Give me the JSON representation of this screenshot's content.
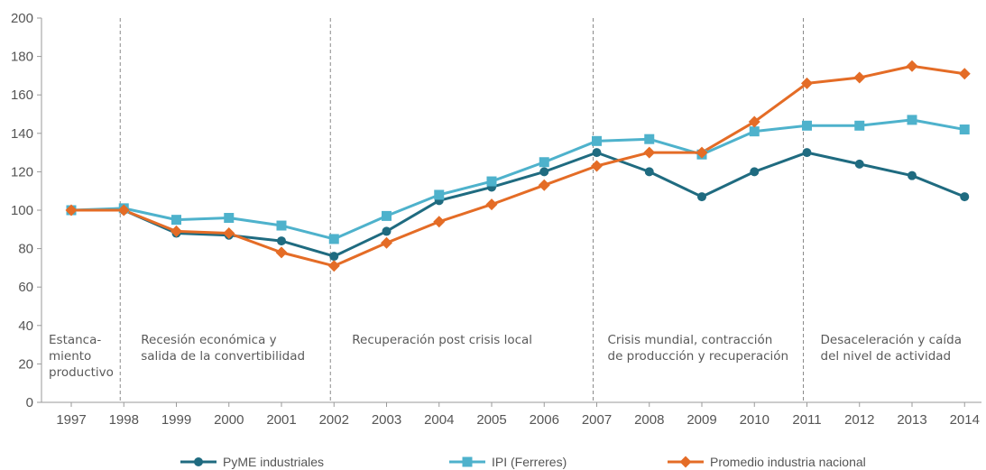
{
  "chart_data": {
    "type": "line",
    "categories": [
      "1997",
      "1998",
      "1999",
      "2000",
      "2001",
      "2002",
      "2003",
      "2004",
      "2005",
      "2006",
      "2007",
      "2008",
      "2009",
      "2010",
      "2011",
      "2012",
      "2013",
      "2014"
    ],
    "ylim": [
      0,
      200
    ],
    "yticks": [
      0,
      20,
      40,
      60,
      80,
      100,
      120,
      140,
      160,
      180,
      200
    ],
    "grid": false,
    "legend_position": "bottom",
    "series": [
      {
        "name": "PyME industriales",
        "color": "#1f6b80",
        "marker": "circle",
        "values": [
          100,
          100,
          88,
          87,
          84,
          76,
          89,
          105,
          112,
          120,
          130,
          120,
          107,
          120,
          130,
          124,
          118,
          107
        ]
      },
      {
        "name": "IPI (Ferreres)",
        "color": "#4eb2cc",
        "marker": "square",
        "values": [
          100,
          101,
          95,
          96,
          92,
          85,
          97,
          108,
          115,
          125,
          136,
          137,
          129,
          141,
          144,
          144,
          147,
          142
        ]
      },
      {
        "name": "Promedio industria nacional",
        "color": "#e46c26",
        "marker": "diamond",
        "values": [
          100,
          100,
          89,
          88,
          78,
          71,
          83,
          94,
          103,
          113,
          123,
          130,
          130,
          146,
          166,
          169,
          175,
          171
        ]
      }
    ],
    "period_dividers": [
      "1998",
      "2002",
      "2007",
      "2011"
    ],
    "periods": [
      {
        "lines": [
          "Estanca-",
          "miento",
          "productivo"
        ]
      },
      {
        "lines": [
          "Recesión económica y",
          "salida de la convertibilidad"
        ]
      },
      {
        "lines": [
          "Recuperación post crisis local"
        ]
      },
      {
        "lines": [
          "Crisis mundial, contracción",
          "de producción y recuperación"
        ]
      },
      {
        "lines": [
          "Desaceleración y caída",
          "del nivel de actividad"
        ]
      }
    ]
  }
}
